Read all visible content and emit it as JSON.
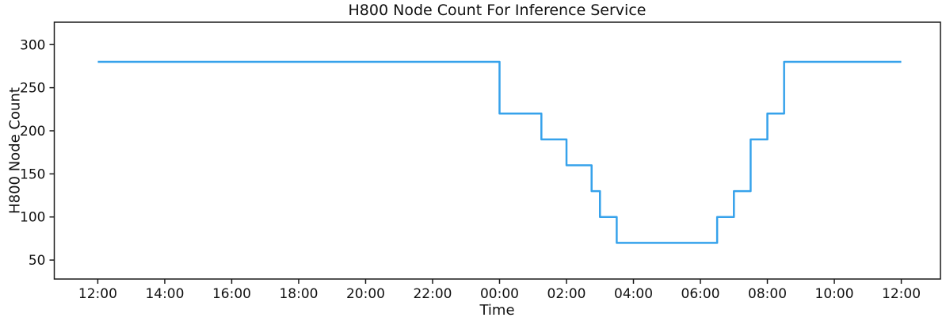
{
  "chart_data": {
    "type": "line",
    "subtype": "step-post",
    "title": "H800 Node Count For Inference Service",
    "xlabel": "Time",
    "ylabel": "H800 Node Count",
    "grid": false,
    "legend": "none",
    "x_axis": {
      "unit": "hours-from-first-12:00",
      "xlim": [
        -1.3,
        25.17
      ],
      "ticks": [
        {
          "t": 0,
          "label": "12:00"
        },
        {
          "t": 2,
          "label": "14:00"
        },
        {
          "t": 4,
          "label": "16:00"
        },
        {
          "t": 6,
          "label": "18:00"
        },
        {
          "t": 8,
          "label": "20:00"
        },
        {
          "t": 10,
          "label": "22:00"
        },
        {
          "t": 12,
          "label": "00:00"
        },
        {
          "t": 14,
          "label": "02:00"
        },
        {
          "t": 16,
          "label": "04:00"
        },
        {
          "t": 18,
          "label": "06:00"
        },
        {
          "t": 20,
          "label": "08:00"
        },
        {
          "t": 22,
          "label": "10:00"
        },
        {
          "t": 24,
          "label": "12:00"
        }
      ]
    },
    "y_axis": {
      "ylim": [
        28,
        326
      ],
      "ticks": [
        50,
        100,
        150,
        200,
        250,
        300
      ]
    },
    "series": [
      {
        "name": "H800 node count",
        "points": [
          {
            "time": "12:00",
            "t": 0,
            "count": 280
          },
          {
            "time": "00:00",
            "t": 12,
            "count": 220
          },
          {
            "time": "01:15",
            "t": 13.25,
            "count": 190
          },
          {
            "time": "02:00",
            "t": 14,
            "count": 160
          },
          {
            "time": "02:45",
            "t": 14.75,
            "count": 130
          },
          {
            "time": "03:00",
            "t": 15,
            "count": 100
          },
          {
            "time": "03:30",
            "t": 15.5,
            "count": 70
          },
          {
            "time": "06:30",
            "t": 18.5,
            "count": 100
          },
          {
            "time": "07:00",
            "t": 19,
            "count": 130
          },
          {
            "time": "07:30",
            "t": 19.5,
            "count": 190
          },
          {
            "time": "08:00",
            "t": 20,
            "count": 220
          },
          {
            "time": "08:30",
            "t": 20.5,
            "count": 280
          },
          {
            "time": "12:00",
            "t": 24,
            "count": 280
          }
        ]
      }
    ],
    "colors": {
      "line": "#36a2eb",
      "axis": "#1a1a1a",
      "text": "#111111",
      "background": "#ffffff"
    }
  }
}
